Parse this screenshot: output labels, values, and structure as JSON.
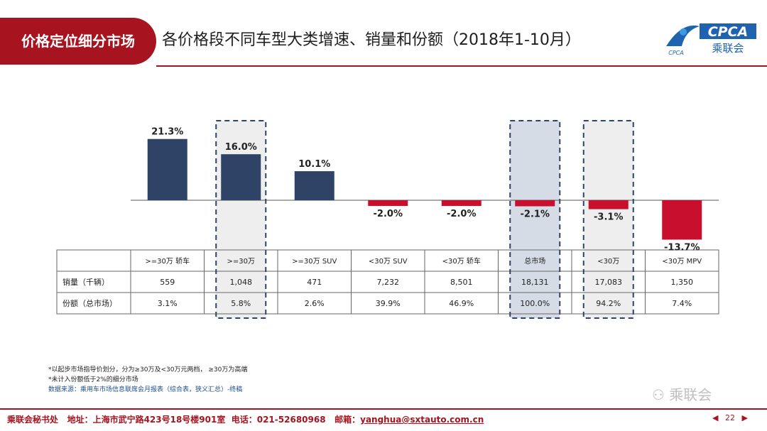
{
  "header": {
    "tab_label": "价格定位细分市场",
    "title": "各价格段不同车型大类增速、销量和份额（2018年1-10月）",
    "logo_text": "CPCA",
    "logo_subtext": "乘联会",
    "logo_small": "CPCA"
  },
  "colors": {
    "brand_red": "#a7131f",
    "positive": "#2f4366",
    "negative": "#c8102e",
    "highlight_fill": "#d6dce6",
    "highlight_light": "#eeeeee"
  },
  "chart_data": {
    "type": "bar",
    "categories": [
      ">=30万 轿车",
      ">=30万",
      ">=30万 SUV",
      "<30万 SUV",
      "<30万 轿车",
      "总市场",
      "<30万",
      "<30万 MPV"
    ],
    "category_labels": [
      ">=30万 轿车",
      ">=30万",
      ">=30万 SUV",
      "<30万 SUV",
      "<30万 轿车",
      "总市场",
      "<30万",
      "<30万 MPV"
    ],
    "values": [
      21.3,
      16.0,
      10.1,
      -2.0,
      -2.0,
      -2.1,
      -3.1,
      -13.7
    ],
    "value_labels": [
      "21.3%",
      "16.0%",
      "10.1%",
      "-2.0%",
      "-2.0%",
      "-2.1%",
      "-3.1%",
      "-13.7%"
    ],
    "highlighted": [
      1,
      5,
      6
    ],
    "ylim": [
      -15,
      25
    ],
    "table": {
      "rows": [
        {
          "label": "销量（千辆）",
          "values": [
            "559",
            "1,048",
            "471",
            "7,232",
            "8,501",
            "18,131",
            "17,083",
            "1,350"
          ]
        },
        {
          "label": "份额（总市场）",
          "values": [
            "3.1%",
            "5.8%",
            "2.6%",
            "39.9%",
            "46.9%",
            "100.0%",
            "94.2%",
            "7.4%"
          ]
        }
      ]
    }
  },
  "notes": {
    "line1": "*以起步市场指导价划分，分为≥30万及<30万元两档，  ≥30万为高端",
    "line2": "*未计入份额低于2%的细分市场",
    "line3": "数据来源：乘用车市场信息联席会月报表（综合表，狭义汇总）-终稿"
  },
  "footer": {
    "org": "乘联会秘书处",
    "address": "地址：上海市武宁路423号18号楼901室",
    "phone": "电话：021-52680968",
    "email_label": "邮箱：",
    "email": "yanghua@sxtauto.com.cn",
    "page_number": "22",
    "watermark": "乘联会"
  }
}
